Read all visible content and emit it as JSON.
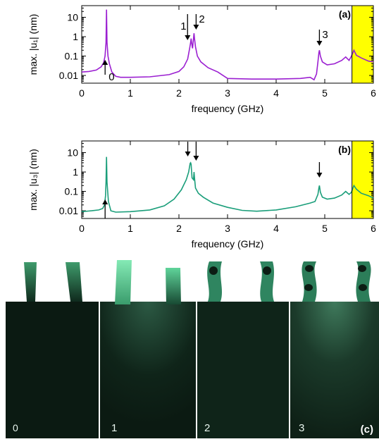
{
  "chart_data": [
    {
      "id": "a",
      "type": "line",
      "panel_label": "(a)",
      "xlabel": "frequency (GHz)",
      "ylabel": "max. |u₁| (nm)",
      "xlim": [
        0,
        6
      ],
      "ylim": [
        0.004,
        40
      ],
      "yscale": "log",
      "x_ticks": [
        "0",
        "1",
        "2",
        "3",
        "4",
        "5",
        "6"
      ],
      "y_ticks": [
        "0.01",
        "0.1",
        "1",
        "10"
      ],
      "highlight_band": {
        "from": 5.56,
        "to": 6.0,
        "color": "#ffff00"
      },
      "series": [
        {
          "color": "#9b1fd1",
          "x": [
            0.0,
            0.15,
            0.3,
            0.4,
            0.45,
            0.48,
            0.5,
            0.51,
            0.52,
            0.54,
            0.57,
            0.62,
            0.7,
            0.8,
            1.0,
            1.4,
            1.8,
            2.0,
            2.1,
            2.18,
            2.22,
            2.24,
            2.25,
            2.26,
            2.28,
            2.3,
            2.31,
            2.32,
            2.34,
            2.38,
            2.45,
            2.6,
            2.8,
            3.0,
            3.5,
            4.0,
            4.5,
            4.7,
            4.78,
            4.83,
            4.86,
            4.88,
            4.89,
            4.91,
            4.95,
            5.05,
            5.2,
            5.35,
            5.43,
            5.5,
            5.54,
            5.58,
            5.6,
            5.65,
            5.75,
            5.9,
            6.0
          ],
          "y": [
            0.015,
            0.016,
            0.019,
            0.028,
            0.045,
            0.1,
            0.5,
            25,
            0.5,
            0.1,
            0.04,
            0.015,
            0.009,
            0.008,
            0.008,
            0.0085,
            0.011,
            0.016,
            0.028,
            0.07,
            0.25,
            0.5,
            0.8,
            0.5,
            0.25,
            0.8,
            1.5,
            0.8,
            0.3,
            0.1,
            0.05,
            0.025,
            0.015,
            0.007,
            0.0065,
            0.0065,
            0.007,
            0.008,
            0.006,
            0.012,
            0.05,
            0.15,
            0.2,
            0.1,
            0.05,
            0.035,
            0.04,
            0.06,
            0.09,
            0.06,
            0.09,
            0.15,
            0.2,
            0.11,
            0.08,
            0.055,
            0.05
          ]
        }
      ],
      "annotations": [
        {
          "text": "0",
          "x": 0.51,
          "arrow": "up"
        },
        {
          "text": "1",
          "x": 2.25,
          "arrow": "down"
        },
        {
          "text": "2",
          "x": 2.31,
          "arrow": "down"
        },
        {
          "text": "3",
          "x": 4.89,
          "arrow": "down"
        }
      ]
    },
    {
      "id": "b",
      "type": "line",
      "panel_label": "(b)",
      "xlabel": "frequency (GHz)",
      "ylabel": "max. |u₃| (nm)",
      "xlim": [
        0,
        6
      ],
      "ylim": [
        0.004,
        40
      ],
      "yscale": "log",
      "x_ticks": [
        "0",
        "1",
        "2",
        "3",
        "4",
        "5",
        "6"
      ],
      "y_ticks": [
        "0.01",
        "0.1",
        "1",
        "10"
      ],
      "highlight_band": {
        "from": 5.56,
        "to": 6.0,
        "color": "#ffff00"
      },
      "series": [
        {
          "color": "#1a9e7a",
          "x": [
            0.0,
            0.2,
            0.35,
            0.43,
            0.47,
            0.49,
            0.5,
            0.51,
            0.52,
            0.55,
            0.6,
            0.7,
            1.0,
            1.4,
            1.7,
            1.9,
            2.05,
            2.15,
            2.2,
            2.23,
            2.24,
            2.25,
            2.27,
            2.3,
            2.31,
            2.32,
            2.34,
            2.4,
            2.5,
            2.7,
            3.0,
            3.3,
            3.6,
            4.0,
            4.4,
            4.7,
            4.8,
            4.86,
            4.88,
            4.89,
            4.91,
            4.95,
            5.05,
            5.2,
            5.35,
            5.43,
            5.5,
            5.55,
            5.58,
            5.6,
            5.65,
            5.75,
            5.9,
            6.0
          ],
          "y": [
            0.009,
            0.01,
            0.011,
            0.013,
            0.02,
            0.06,
            0.3,
            6,
            0.3,
            0.03,
            0.01,
            0.0085,
            0.009,
            0.011,
            0.018,
            0.04,
            0.12,
            0.4,
            1.0,
            2.8,
            3.0,
            2.5,
            0.5,
            0.4,
            1.0,
            0.5,
            0.15,
            0.08,
            0.05,
            0.025,
            0.015,
            0.0105,
            0.0095,
            0.011,
            0.016,
            0.025,
            0.03,
            0.07,
            0.15,
            0.2,
            0.09,
            0.05,
            0.04,
            0.045,
            0.065,
            0.1,
            0.07,
            0.09,
            0.15,
            0.2,
            0.13,
            0.08,
            0.06,
            0.045
          ]
        }
      ],
      "annotations": [
        {
          "text": "",
          "x": 0.51,
          "arrow": "up"
        },
        {
          "text": "",
          "x": 2.24,
          "arrow": "down"
        },
        {
          "text": "",
          "x": 2.31,
          "arrow": "down"
        },
        {
          "text": "",
          "x": 4.89,
          "arrow": "down"
        }
      ]
    }
  ],
  "mode_images": {
    "panel_label": "(c)",
    "frames": [
      {
        "label": "0"
      },
      {
        "label": "1"
      },
      {
        "label": "2"
      },
      {
        "label": "3"
      }
    ]
  }
}
